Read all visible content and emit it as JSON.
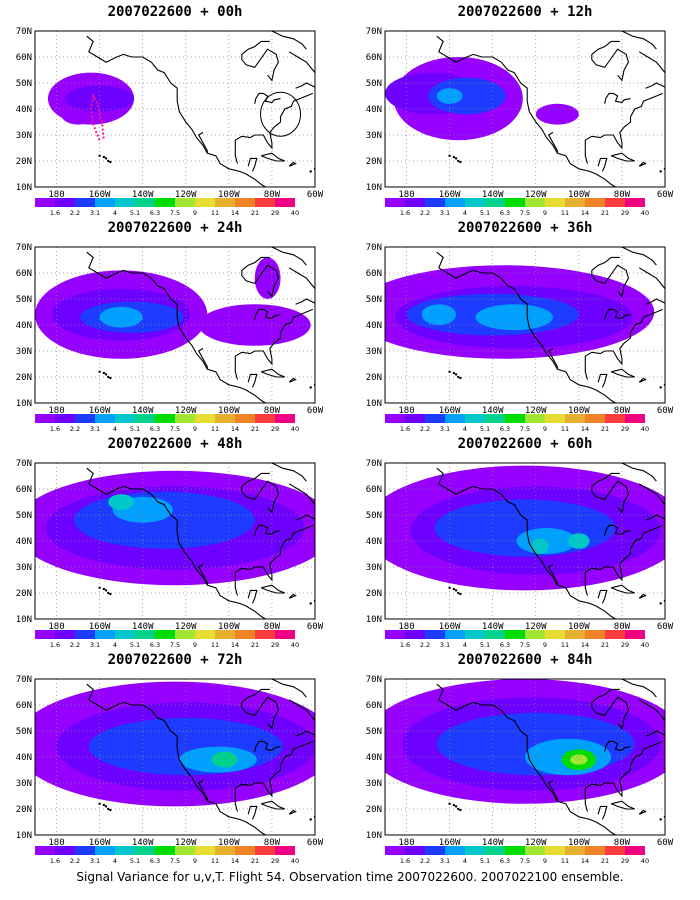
{
  "figure": {
    "caption": "Signal Variance for u,v,T. Flight 54. Observation time 2007022600. 2007022100 ensemble."
  },
  "chart_data": {
    "type": "heatmap",
    "map_projection": "lat-lon",
    "lon_range": [
      -190,
      -60
    ],
    "lat_range": [
      10,
      70
    ],
    "lon_ticks": [
      "180",
      "160W",
      "140W",
      "120W",
      "100W",
      "80W",
      "60W"
    ],
    "lat_ticks": [
      "10N",
      "20N",
      "30N",
      "40N",
      "50N",
      "60N",
      "70N"
    ],
    "grid": true,
    "grid_style": "dotted",
    "color_scale": {
      "levels": [
        "1.6",
        "2.2",
        "3.1",
        "4",
        "5.1",
        "6.3",
        "7.5",
        "9",
        "11",
        "14",
        "21",
        "29",
        "40"
      ],
      "colors": [
        "#9600ff",
        "#6e00ff",
        "#1e3cff",
        "#00a0ff",
        "#00c8c8",
        "#00d28c",
        "#00dc00",
        "#a0e632",
        "#e6dc32",
        "#e6af2d",
        "#f08228",
        "#fa3c3c",
        "#f00082"
      ]
    },
    "panels": [
      {
        "title": "2007022600 + 00h",
        "flight_track": true,
        "blobs": [
          {
            "lon": -164,
            "lat": 44,
            "rlon": 20,
            "rlat": 10,
            "lvl": 0
          },
          {
            "lon": -170,
            "lat": 38,
            "rlon": 8,
            "rlat": 4,
            "lvl": 0
          },
          {
            "lon": -160,
            "lat": 44,
            "rlon": 16,
            "rlat": 5,
            "lvl": 1
          }
        ]
      },
      {
        "title": "2007022600 + 12h",
        "flight_track": false,
        "blobs": [
          {
            "lon": -156,
            "lat": 44,
            "rlon": 30,
            "rlat": 16,
            "lvl": 0
          },
          {
            "lon": -168,
            "lat": 46,
            "rlon": 22,
            "rlat": 8,
            "lvl": 1
          },
          {
            "lon": -152,
            "lat": 45,
            "rlon": 18,
            "rlat": 7,
            "lvl": 2
          },
          {
            "lon": -110,
            "lat": 38,
            "rlon": 10,
            "rlat": 4,
            "lvl": 0
          },
          {
            "lon": -160,
            "lat": 45,
            "rlon": 6,
            "rlat": 3,
            "lvl": 3
          }
        ]
      },
      {
        "title": "2007022600 + 24h",
        "flight_track": false,
        "blobs": [
          {
            "lon": -150,
            "lat": 44,
            "rlon": 40,
            "rlat": 17,
            "lvl": 0
          },
          {
            "lon": -150,
            "lat": 44,
            "rlon": 32,
            "rlat": 10,
            "lvl": 1
          },
          {
            "lon": -145,
            "lat": 43,
            "rlon": 24,
            "rlat": 6,
            "lvl": 2
          },
          {
            "lon": -150,
            "lat": 43,
            "rlon": 10,
            "rlat": 4,
            "lvl": 3
          },
          {
            "lon": -88,
            "lat": 40,
            "rlon": 26,
            "rlat": 8,
            "lvl": 0
          },
          {
            "lon": -82,
            "lat": 58,
            "rlon": 6,
            "rlat": 8,
            "lvl": 0
          }
        ]
      },
      {
        "title": "2007022600 + 36h",
        "flight_track": false,
        "blobs": [
          {
            "lon": -135,
            "lat": 45,
            "rlon": 70,
            "rlat": 18,
            "lvl": 0
          },
          {
            "lon": -130,
            "lat": 43,
            "rlon": 55,
            "rlat": 12,
            "lvl": 1
          },
          {
            "lon": -140,
            "lat": 44,
            "rlon": 40,
            "rlat": 8,
            "lvl": 2
          },
          {
            "lon": -130,
            "lat": 43,
            "rlon": 18,
            "rlat": 5,
            "lvl": 3
          },
          {
            "lon": -165,
            "lat": 44,
            "rlon": 8,
            "rlat": 4,
            "lvl": 3
          }
        ]
      },
      {
        "title": "2007022600 + 48h",
        "flight_track": false,
        "blobs": [
          {
            "lon": -125,
            "lat": 45,
            "rlon": 75,
            "rlat": 22,
            "lvl": 0
          },
          {
            "lon": -125,
            "lat": 45,
            "rlon": 60,
            "rlat": 16,
            "lvl": 1
          },
          {
            "lon": -130,
            "lat": 48,
            "rlon": 42,
            "rlat": 11,
            "lvl": 2
          },
          {
            "lon": -140,
            "lat": 52,
            "rlon": 14,
            "rlat": 5,
            "lvl": 3
          },
          {
            "lon": -150,
            "lat": 55,
            "rlon": 6,
            "rlat": 3,
            "lvl": 4
          }
        ]
      },
      {
        "title": "2007022600 + 60h",
        "flight_track": false,
        "blobs": [
          {
            "lon": -125,
            "lat": 45,
            "rlon": 75,
            "rlat": 24,
            "lvl": 0
          },
          {
            "lon": -120,
            "lat": 44,
            "rlon": 58,
            "rlat": 17,
            "lvl": 1
          },
          {
            "lon": -125,
            "lat": 45,
            "rlon": 42,
            "rlat": 11,
            "lvl": 2
          },
          {
            "lon": -115,
            "lat": 40,
            "rlon": 14,
            "rlat": 5,
            "lvl": 3
          },
          {
            "lon": -118,
            "lat": 38,
            "rlon": 4,
            "rlat": 3,
            "lvl": 4
          },
          {
            "lon": -100,
            "lat": 40,
            "rlon": 5,
            "rlat": 3,
            "lvl": 4
          }
        ]
      },
      {
        "title": "2007022600 + 72h",
        "flight_track": false,
        "blobs": [
          {
            "lon": -125,
            "lat": 45,
            "rlon": 75,
            "rlat": 24,
            "lvl": 0
          },
          {
            "lon": -120,
            "lat": 44,
            "rlon": 60,
            "rlat": 17,
            "lvl": 1
          },
          {
            "lon": -120,
            "lat": 44,
            "rlon": 45,
            "rlat": 11,
            "lvl": 2
          },
          {
            "lon": -105,
            "lat": 39,
            "rlon": 18,
            "rlat": 5,
            "lvl": 3
          },
          {
            "lon": -102,
            "lat": 39,
            "rlon": 6,
            "rlat": 3,
            "lvl": 5
          }
        ]
      },
      {
        "title": "2007022600 + 84h",
        "flight_track": false,
        "blobs": [
          {
            "lon": -125,
            "lat": 46,
            "rlon": 75,
            "rlat": 24,
            "lvl": 0
          },
          {
            "lon": -122,
            "lat": 45,
            "rlon": 60,
            "rlat": 18,
            "lvl": 1
          },
          {
            "lon": -120,
            "lat": 45,
            "rlon": 46,
            "rlat": 12,
            "lvl": 2
          },
          {
            "lon": -105,
            "lat": 40,
            "rlon": 20,
            "rlat": 7,
            "lvl": 3
          },
          {
            "lon": -100,
            "lat": 39,
            "rlon": 8,
            "rlat": 4,
            "lvl": 6
          },
          {
            "lon": -100,
            "lat": 39,
            "rlon": 4,
            "rlat": 2,
            "lvl": 7
          }
        ]
      }
    ]
  }
}
